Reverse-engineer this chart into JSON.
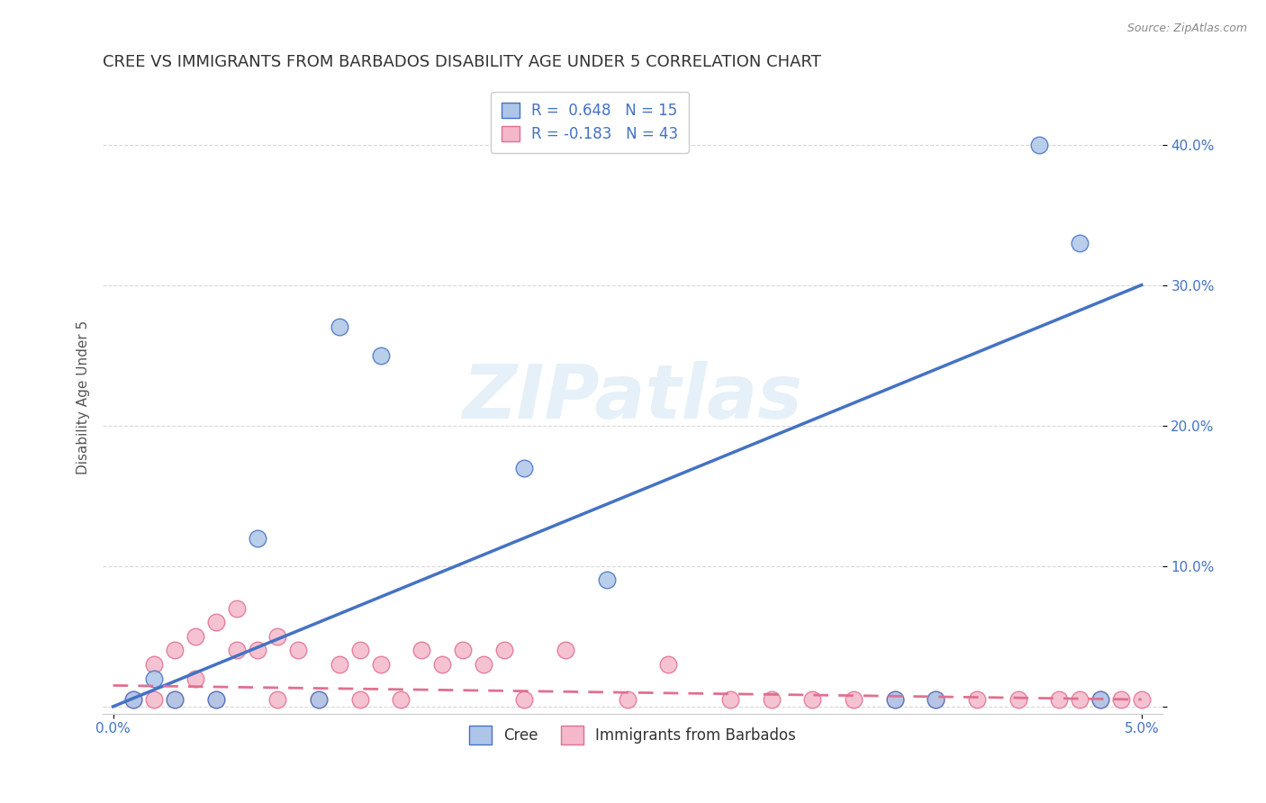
{
  "title": "CREE VS IMMIGRANTS FROM BARBADOS DISABILITY AGE UNDER 5 CORRELATION CHART",
  "source": "Source: ZipAtlas.com",
  "ylabel": "Disability Age Under 5",
  "background_color": "#ffffff",
  "watermark_text": "ZIPatlas",
  "cree_R": 0.648,
  "cree_N": 15,
  "barbados_R": -0.183,
  "barbados_N": 43,
  "cree_color": "#adc6e8",
  "cree_line_color": "#4472c4",
  "barbados_color": "#f4b8ca",
  "barbados_line_color": "#e07090",
  "cree_x": [
    0.001,
    0.002,
    0.003,
    0.005,
    0.007,
    0.01,
    0.011,
    0.013,
    0.02,
    0.024,
    0.038,
    0.04,
    0.045,
    0.047,
    0.048
  ],
  "cree_y": [
    0.005,
    0.02,
    0.005,
    0.005,
    0.12,
    0.005,
    0.27,
    0.25,
    0.17,
    0.09,
    0.005,
    0.005,
    0.4,
    0.33,
    0.005
  ],
  "barbados_x": [
    0.001,
    0.002,
    0.002,
    0.003,
    0.003,
    0.004,
    0.004,
    0.005,
    0.005,
    0.006,
    0.006,
    0.007,
    0.008,
    0.008,
    0.009,
    0.01,
    0.011,
    0.012,
    0.012,
    0.013,
    0.014,
    0.015,
    0.016,
    0.017,
    0.018,
    0.019,
    0.02,
    0.022,
    0.025,
    0.027,
    0.03,
    0.032,
    0.034,
    0.036,
    0.038,
    0.04,
    0.042,
    0.044,
    0.046,
    0.047,
    0.048,
    0.049,
    0.05
  ],
  "barbados_y": [
    0.005,
    0.005,
    0.03,
    0.005,
    0.04,
    0.02,
    0.05,
    0.005,
    0.06,
    0.04,
    0.07,
    0.04,
    0.005,
    0.05,
    0.04,
    0.005,
    0.03,
    0.005,
    0.04,
    0.03,
    0.005,
    0.04,
    0.03,
    0.04,
    0.03,
    0.04,
    0.005,
    0.04,
    0.005,
    0.03,
    0.005,
    0.005,
    0.005,
    0.005,
    0.005,
    0.005,
    0.005,
    0.005,
    0.005,
    0.005,
    0.005,
    0.005,
    0.005
  ],
  "cree_line_x": [
    0.0,
    0.05
  ],
  "cree_line_y": [
    0.0,
    0.3
  ],
  "barbados_line_x": [
    0.0,
    0.05
  ],
  "barbados_line_y": [
    0.015,
    0.005
  ],
  "xlim": [
    -0.0005,
    0.051
  ],
  "ylim": [
    -0.005,
    0.445
  ],
  "ytick_positions": [
    0.0,
    0.1,
    0.2,
    0.3,
    0.4
  ],
  "ytick_labels": [
    "",
    "10.0%",
    "20.0%",
    "30.0%",
    "40.0%"
  ],
  "grid_color": "#d8d8d8",
  "title_fontsize": 13,
  "axis_label_fontsize": 11,
  "tick_fontsize": 11,
  "legend_fontsize": 12
}
